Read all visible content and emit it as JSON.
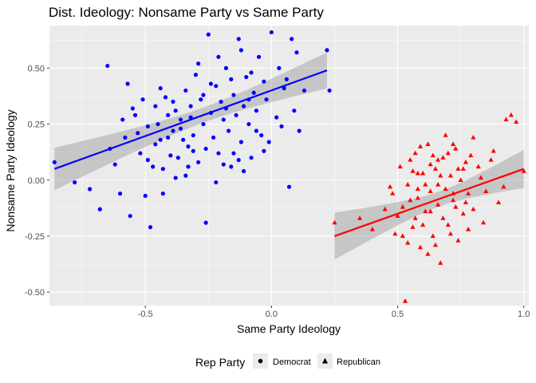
{
  "chart_data": {
    "type": "scatter",
    "title": "Dist. Ideology: Nonsame Party vs Same Party",
    "xlabel": "Same Party Ideology",
    "ylabel": "Nonsame Party Ideology",
    "xlim": [
      -0.88,
      1.02
    ],
    "ylim": [
      -0.56,
      0.69
    ],
    "x_ticks": [
      -0.5,
      0.0,
      0.5,
      1.0
    ],
    "x_tick_labels": [
      "-0.5",
      "0.0",
      "0.5",
      "1.0"
    ],
    "y_ticks": [
      -0.5,
      -0.25,
      0.0,
      0.25,
      0.5
    ],
    "y_tick_labels": [
      "-0.50",
      "-0.25",
      "0.00",
      "0.25",
      "0.50"
    ],
    "grid": true,
    "legend": {
      "title": "Rep Party",
      "position": "bottom",
      "entries": [
        "Democrat",
        "Republican"
      ]
    },
    "series": [
      {
        "name": "Democrat",
        "color": "#0000ff",
        "marker": "circle",
        "fit": {
          "x": [
            -0.86,
            0.22
          ],
          "y": [
            0.05,
            0.49
          ]
        },
        "points": [
          [
            -0.86,
            0.08
          ],
          [
            -0.78,
            -0.01
          ],
          [
            -0.72,
            -0.04
          ],
          [
            -0.68,
            -0.13
          ],
          [
            -0.65,
            0.51
          ],
          [
            -0.62,
            0.07
          ],
          [
            -0.6,
            -0.06
          ],
          [
            -0.58,
            0.19
          ],
          [
            -0.56,
            -0.16
          ],
          [
            -0.55,
            0.32
          ],
          [
            -0.53,
            0.21
          ],
          [
            -0.52,
            0.12
          ],
          [
            -0.5,
            -0.07
          ],
          [
            -0.49,
            0.09
          ],
          [
            -0.48,
            -0.21
          ],
          [
            -0.47,
            0.06
          ],
          [
            -0.46,
            0.16
          ],
          [
            -0.45,
            0.25
          ],
          [
            -0.44,
            0.18
          ],
          [
            -0.43,
            0.05
          ],
          [
            -0.42,
            0.37
          ],
          [
            -0.41,
            0.29
          ],
          [
            -0.4,
            0.11
          ],
          [
            -0.39,
            0.22
          ],
          [
            -0.38,
            0.31
          ],
          [
            -0.37,
            0.1
          ],
          [
            -0.36,
            0.27
          ],
          [
            -0.35,
            0.18
          ],
          [
            -0.34,
            0.4
          ],
          [
            -0.33,
            0.15
          ],
          [
            -0.32,
            0.33
          ],
          [
            -0.31,
            0.2
          ],
          [
            -0.3,
            0.47
          ],
          [
            -0.29,
            0.08
          ],
          [
            -0.28,
            0.36
          ],
          [
            -0.27,
            0.25
          ],
          [
            -0.26,
            -0.19
          ],
          [
            -0.25,
            0.65
          ],
          [
            -0.24,
            0.3
          ],
          [
            -0.23,
            0.19
          ],
          [
            -0.22,
            0.42
          ],
          [
            -0.21,
            0.12
          ],
          [
            -0.2,
            0.35
          ],
          [
            -0.19,
            0.27
          ],
          [
            -0.18,
            0.5
          ],
          [
            -0.17,
            0.22
          ],
          [
            -0.16,
            0.06
          ],
          [
            -0.15,
            0.38
          ],
          [
            -0.14,
            0.29
          ],
          [
            -0.13,
            0.63
          ],
          [
            -0.12,
            0.17
          ],
          [
            -0.11,
            0.33
          ],
          [
            -0.1,
            0.46
          ],
          [
            -0.09,
            0.25
          ],
          [
            -0.08,
            0.1
          ],
          [
            -0.07,
            0.39
          ],
          [
            -0.06,
            0.31
          ],
          [
            -0.05,
            0.55
          ],
          [
            -0.04,
            0.2
          ],
          [
            -0.03,
            0.44
          ],
          [
            -0.02,
            0.36
          ],
          [
            0.0,
            0.66
          ],
          [
            0.02,
            0.28
          ],
          [
            0.03,
            0.5
          ],
          [
            0.05,
            0.41
          ],
          [
            0.07,
            -0.03
          ],
          [
            0.08,
            0.63
          ],
          [
            0.1,
            0.57
          ],
          [
            0.11,
            0.22
          ],
          [
            0.13,
            0.4
          ],
          [
            0.22,
            0.58
          ],
          [
            0.23,
            0.4
          ],
          [
            -0.57,
            0.43
          ],
          [
            -0.54,
            0.29
          ],
          [
            -0.44,
            0.41
          ],
          [
            -0.36,
            0.23
          ],
          [
            -0.33,
            0.06
          ],
          [
            -0.29,
            0.52
          ],
          [
            -0.26,
            0.14
          ],
          [
            -0.21,
            0.55
          ],
          [
            -0.18,
            0.32
          ],
          [
            -0.15,
            0.12
          ],
          [
            -0.11,
            0.04
          ],
          [
            -0.06,
            0.22
          ],
          [
            -0.01,
            0.17
          ],
          [
            0.04,
            0.24
          ],
          [
            0.09,
            0.31
          ],
          [
            -0.39,
            0.35
          ],
          [
            -0.34,
            0.02
          ],
          [
            -0.24,
            0.43
          ],
          [
            -0.49,
            0.24
          ],
          [
            -0.46,
            0.33
          ],
          [
            -0.41,
            0.19
          ],
          [
            -0.31,
            0.13
          ],
          [
            -0.27,
            0.38
          ],
          [
            -0.16,
            0.45
          ],
          [
            -0.13,
            0.09
          ],
          [
            -0.08,
            0.48
          ],
          [
            -0.03,
            0.13
          ],
          [
            0.06,
            0.45
          ],
          [
            -0.64,
            0.14
          ],
          [
            -0.59,
            0.27
          ],
          [
            -0.51,
            0.36
          ],
          [
            -0.43,
            -0.06
          ],
          [
            -0.38,
            0.01
          ],
          [
            -0.32,
            0.28
          ],
          [
            -0.22,
            -0.01
          ],
          [
            -0.19,
            0.07
          ],
          [
            -0.12,
            0.58
          ],
          [
            -0.09,
            0.36
          ]
        ]
      },
      {
        "name": "Republican",
        "color": "#ff0000",
        "marker": "triangle",
        "fit": {
          "x": [
            0.25,
            1.0
          ],
          "y": [
            -0.25,
            0.05
          ]
        },
        "points": [
          [
            0.25,
            -0.19
          ],
          [
            0.35,
            -0.17
          ],
          [
            0.4,
            -0.22
          ],
          [
            0.45,
            -0.13
          ],
          [
            0.48,
            -0.06
          ],
          [
            0.5,
            -0.16
          ],
          [
            0.51,
            0.06
          ],
          [
            0.52,
            -0.25
          ],
          [
            0.53,
            -0.54
          ],
          [
            0.54,
            -0.02
          ],
          [
            0.55,
            0.09
          ],
          [
            0.56,
            -0.21
          ],
          [
            0.57,
            0.12
          ],
          [
            0.58,
            -0.08
          ],
          [
            0.59,
            -0.3
          ],
          [
            0.6,
            0.03
          ],
          [
            0.61,
            -0.14
          ],
          [
            0.62,
            0.16
          ],
          [
            0.63,
            -0.05
          ],
          [
            0.64,
            -0.25
          ],
          [
            0.65,
            0.05
          ],
          [
            0.66,
            -0.11
          ],
          [
            0.67,
            -0.37
          ],
          [
            0.68,
            0.1
          ],
          [
            0.69,
            -0.04
          ],
          [
            0.7,
            -0.2
          ],
          [
            0.71,
            0.02
          ],
          [
            0.72,
            -0.09
          ],
          [
            0.73,
            0.14
          ],
          [
            0.74,
            -0.27
          ],
          [
            0.75,
            0.0
          ],
          [
            0.76,
            -0.15
          ],
          [
            0.77,
            0.08
          ],
          [
            0.78,
            -0.06
          ],
          [
            0.79,
            0.11
          ],
          [
            0.8,
            -0.13
          ],
          [
            0.82,
            0.06
          ],
          [
            0.85,
            -0.05
          ],
          [
            0.88,
            0.13
          ],
          [
            0.9,
            -0.1
          ],
          [
            0.93,
            0.27
          ],
          [
            0.95,
            0.29
          ],
          [
            0.97,
            0.26
          ],
          [
            1.0,
            0.04
          ],
          [
            0.52,
            -0.12
          ],
          [
            0.55,
            -0.09
          ],
          [
            0.58,
            0.03
          ],
          [
            0.6,
            -0.2
          ],
          [
            0.63,
            0.07
          ],
          [
            0.66,
            -0.02
          ],
          [
            0.68,
            -0.17
          ],
          [
            0.7,
            0.12
          ],
          [
            0.73,
            -0.12
          ],
          [
            0.76,
            0.05
          ],
          [
            0.62,
            -0.33
          ],
          [
            0.49,
            -0.24
          ],
          [
            0.57,
            -0.17
          ],
          [
            0.65,
            -0.29
          ],
          [
            0.71,
            -0.24
          ],
          [
            0.8,
            0.19
          ],
          [
            0.84,
            -0.19
          ],
          [
            0.87,
            0.09
          ],
          [
            0.56,
            0.04
          ],
          [
            0.59,
            0.15
          ],
          [
            0.64,
            0.11
          ],
          [
            0.69,
            0.2
          ],
          [
            0.74,
            0.05
          ],
          [
            0.78,
            -0.22
          ],
          [
            0.92,
            -0.03
          ],
          [
            0.54,
            -0.28
          ],
          [
            0.61,
            -0.02
          ],
          [
            0.67,
            0.02
          ],
          [
            0.72,
            0.16
          ],
          [
            0.77,
            -0.1
          ],
          [
            0.83,
            0.01
          ],
          [
            0.47,
            -0.03
          ],
          [
            0.58,
            -0.04
          ],
          [
            0.63,
            -0.14
          ],
          [
            0.66,
            0.09
          ],
          [
            0.72,
            -0.06
          ]
        ]
      }
    ]
  }
}
